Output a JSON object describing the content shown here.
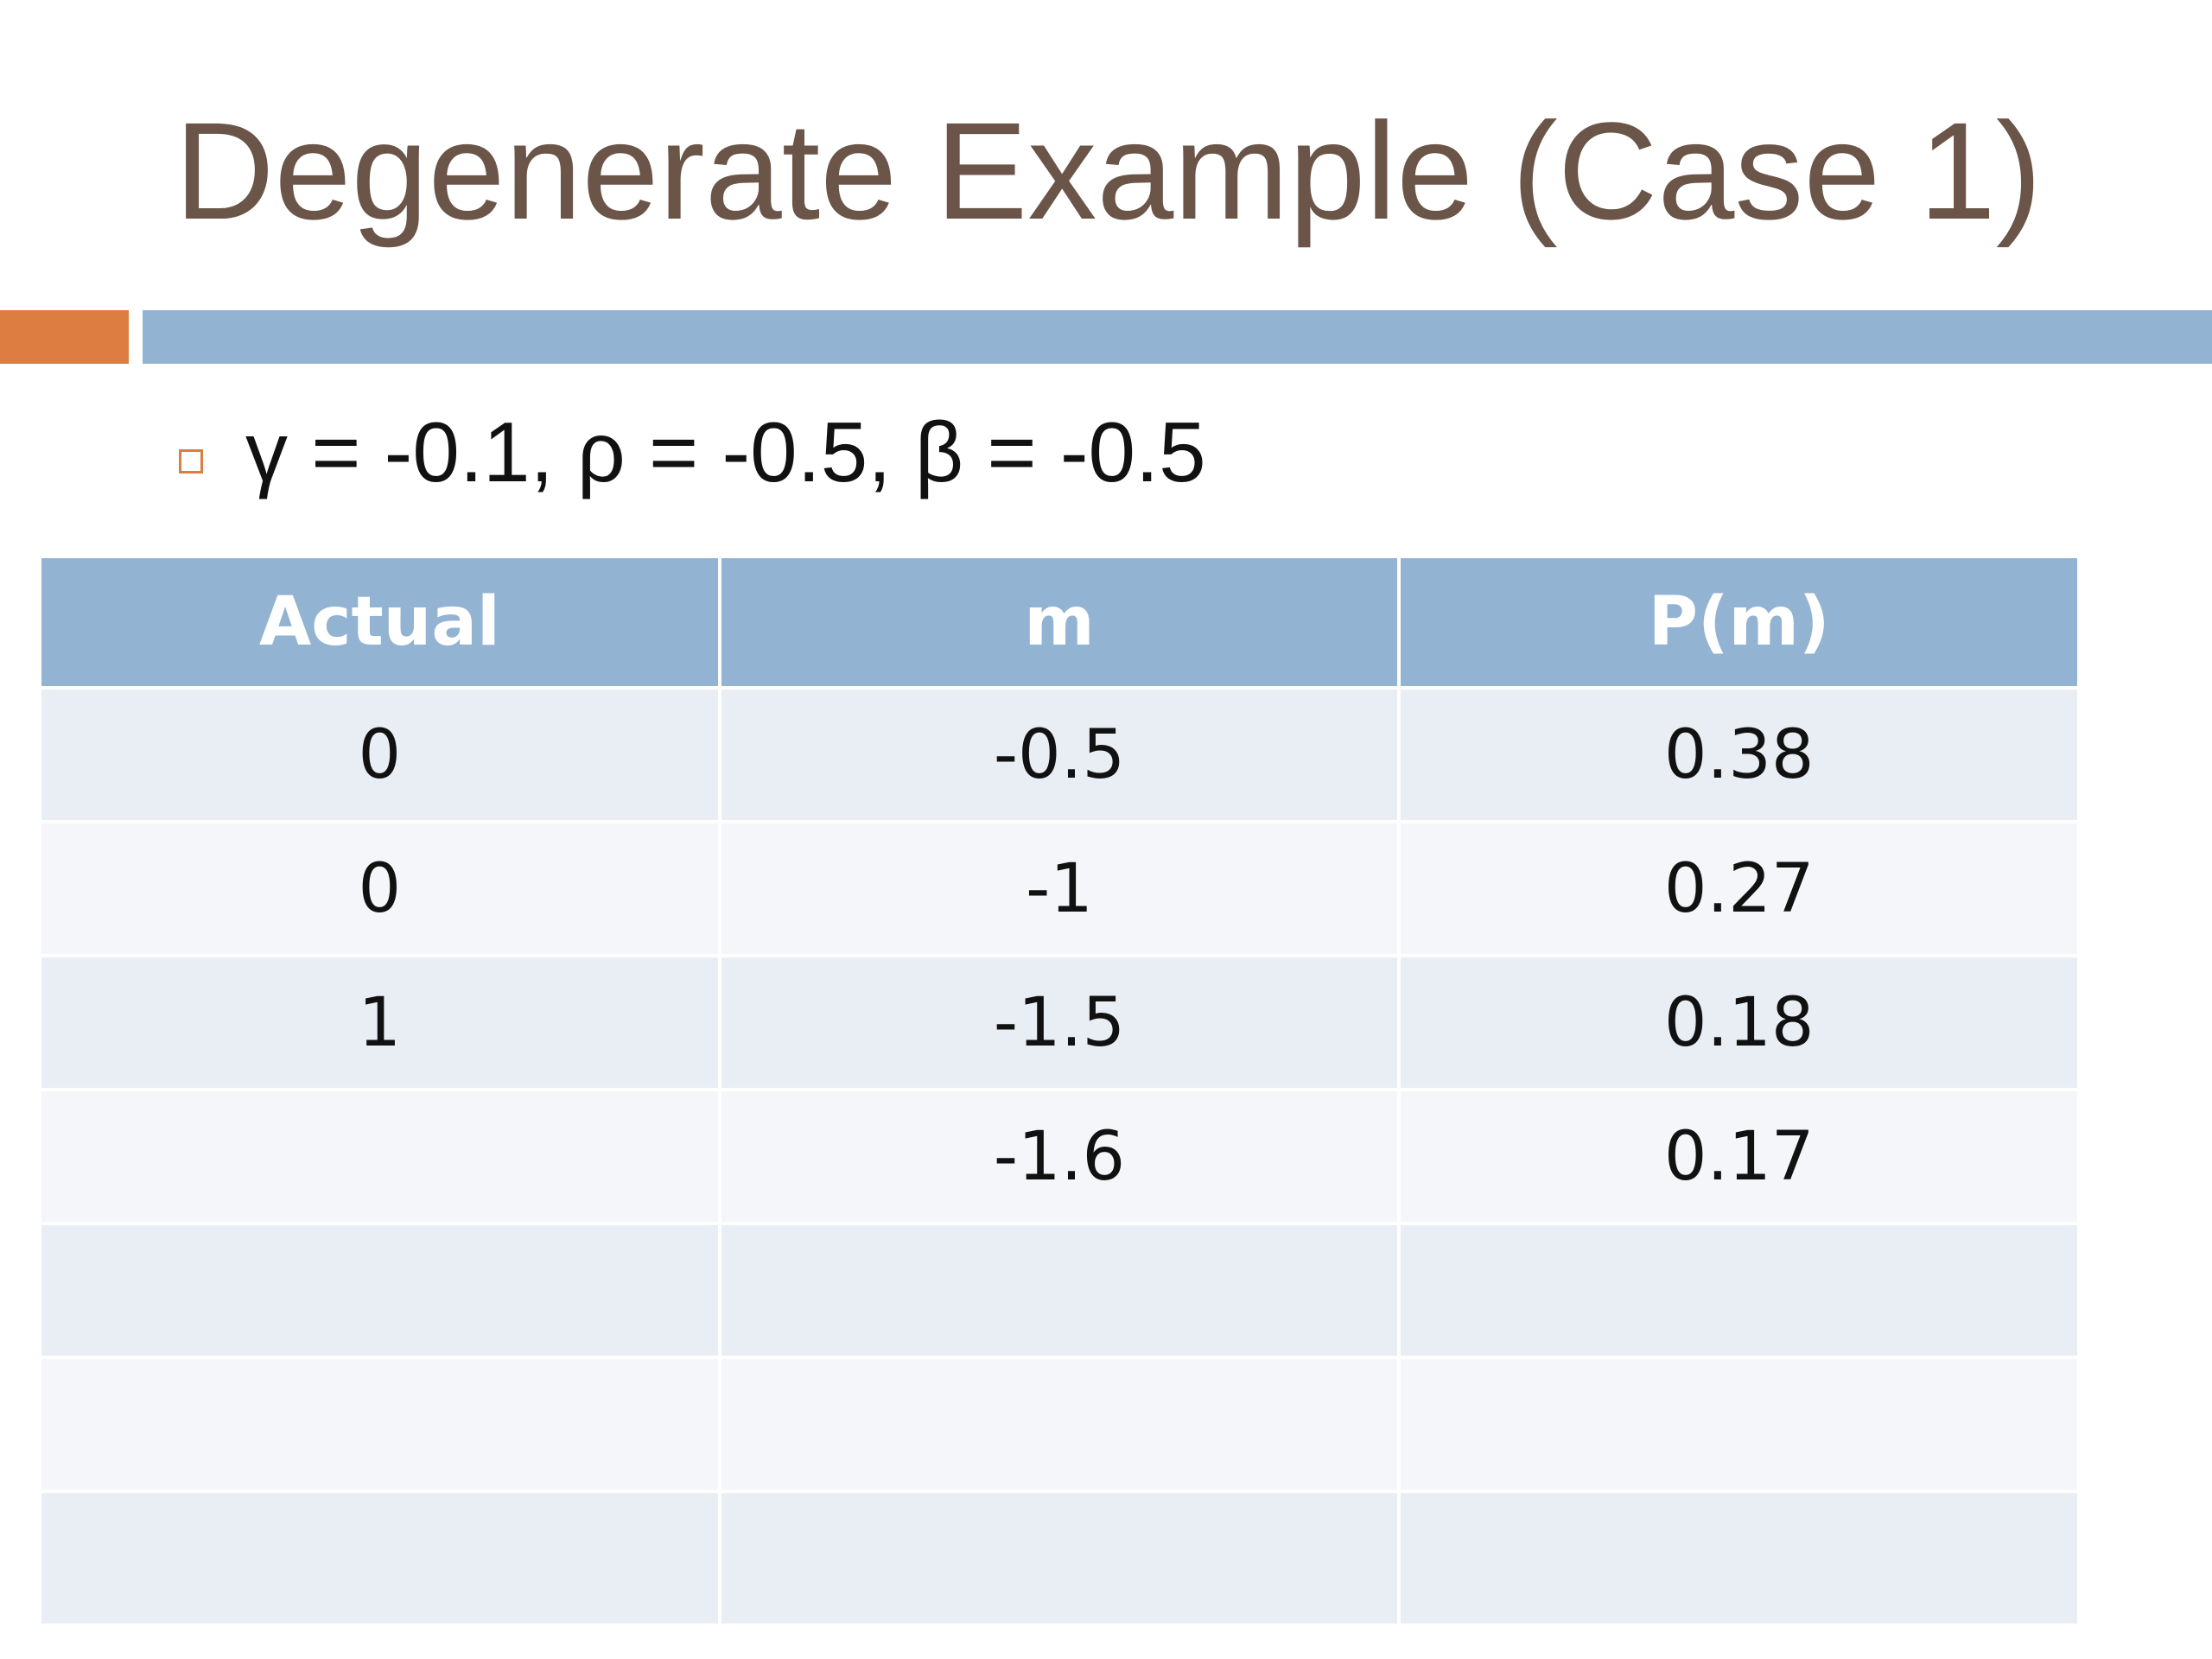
{
  "header": {
    "title": "Degenerate Example (Case 1)"
  },
  "bullets": [
    "γ = -0.1, ρ = -0.5, β = -0.5"
  ],
  "table": {
    "columns": [
      "Actual",
      "m",
      "P(m)"
    ],
    "rows": [
      [
        "0",
        "-0.5",
        "0.38"
      ],
      [
        "0",
        "-1",
        "0.27"
      ],
      [
        "1",
        "-1.5",
        "0.18"
      ],
      [
        null,
        "-1.6",
        "0.17"
      ]
    ]
  }
}
